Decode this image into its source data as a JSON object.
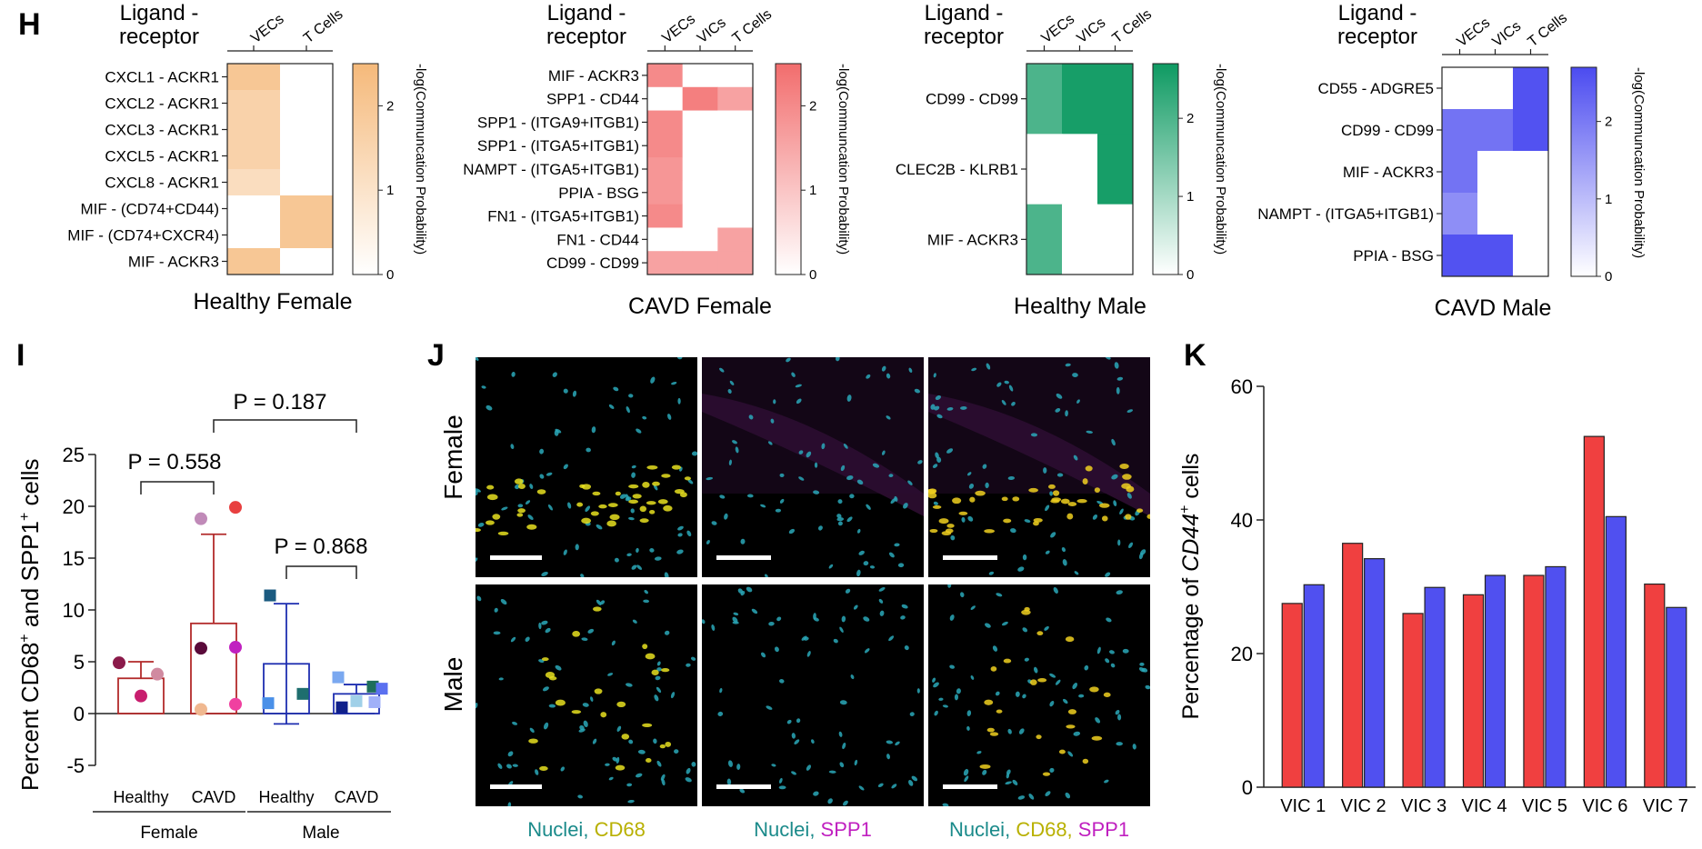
{
  "panel_letters": {
    "H": "H",
    "I": "I",
    "J": "J",
    "K": "K"
  },
  "heatmaps": {
    "header": "Ligand -\nreceptor",
    "colorbar_label": "-log(Communcation Probability)",
    "panels": [
      {
        "title": "Healthy Female",
        "columns": [
          "VECs",
          "T Cells"
        ],
        "rows": [
          "CXCL1 - ACKR1",
          "CXCL2 - ACKR1",
          "CXCL3 - ACKR1",
          "CXCL5 - ACKR1",
          "CXCL8 - ACKR1",
          "MIF - (CD74+CD44)",
          "MIF - (CD74+CXCR4)",
          "MIF - ACKR3"
        ],
        "values": [
          [
            2.0,
            0
          ],
          [
            1.6,
            0
          ],
          [
            1.6,
            0
          ],
          [
            1.6,
            0
          ],
          [
            1.2,
            0
          ],
          [
            0,
            2.0
          ],
          [
            0,
            2.0
          ],
          [
            2.0,
            0
          ]
        ],
        "color": "#F5B97A",
        "ticks": [
          "0",
          "1",
          "2"
        ],
        "max": 2.5
      },
      {
        "title": "CAVD Female",
        "columns": [
          "VECs",
          "VICs",
          "T Cells"
        ],
        "rows": [
          "MIF - ACKR3",
          "SPP1 - CD44",
          "SPP1 - (ITGA9+ITGB1)",
          "SPP1 - (ITGA5+ITGB1)",
          "NAMPT - (ITGA5+ITGB1)",
          "PPIA - BSG",
          "FN1 - (ITGA5+ITGB1)",
          "FN1 - CD44",
          "CD99 - CD99"
        ],
        "values": [
          [
            2.0,
            0,
            0
          ],
          [
            0,
            2.2,
            1.6
          ],
          [
            2.0,
            0,
            0
          ],
          [
            2.0,
            0,
            0
          ],
          [
            1.8,
            0,
            0
          ],
          [
            1.8,
            0,
            0
          ],
          [
            2.0,
            0,
            0
          ],
          [
            0,
            0,
            1.6
          ],
          [
            1.6,
            1.6,
            1.6
          ]
        ],
        "color": "#F26D6D",
        "ticks": [
          "0",
          "1",
          "2"
        ],
        "max": 2.5
      },
      {
        "title": "Healthy Male",
        "columns": [
          "VECs",
          "VICs",
          "T Cells"
        ],
        "rows": [
          "CD99 - CD99",
          "CLEC2B - KLRB1",
          "MIF - ACKR3"
        ],
        "values": [
          [
            2.0,
            2.6,
            2.6
          ],
          [
            0,
            0,
            2.6
          ],
          [
            2.0,
            0,
            0
          ]
        ],
        "color": "#0E9A62",
        "ticks": [
          "0",
          "1",
          "2"
        ],
        "max": 2.7
      },
      {
        "title": "CAVD Male",
        "columns": [
          "VECs",
          "VICs",
          "T Cells"
        ],
        "rows": [
          "CD55 - ADGRE5",
          "CD99 - CD99",
          "MIF - ACKR3",
          "NAMPT - (ITGA5+ITGB1)",
          "PPIA - BSG"
        ],
        "values": [
          [
            0,
            0,
            2.6
          ],
          [
            2.1,
            2.1,
            2.6
          ],
          [
            2.1,
            0,
            0
          ],
          [
            1.7,
            0,
            0
          ],
          [
            2.6,
            2.6,
            0
          ]
        ],
        "color": "#4B4BF0",
        "ticks": [
          "0",
          "1",
          "2"
        ],
        "max": 2.7
      }
    ]
  },
  "panel_I": {
    "ylabel_main": "Percent CD68",
    "ylabel_sup": "+",
    "ylabel_mid": " and SPP1",
    "ylabel_end": " cells",
    "yticks": [
      "-5",
      "0",
      "5",
      "10",
      "15",
      "20",
      "25"
    ],
    "groups": [
      {
        "label": "Healthy",
        "mean": 3.4,
        "sd": 1.6,
        "color": "#B22A2A",
        "points": [
          {
            "y": 4.9,
            "c": "#8B1A4A",
            "s": "circle"
          },
          {
            "y": 3.8,
            "c": "#D08AA0",
            "s": "circle"
          },
          {
            "y": 1.7,
            "c": "#C81E6E",
            "s": "circle"
          }
        ]
      },
      {
        "label": "CAVD",
        "mean": 8.7,
        "sd": 8.6,
        "color": "#B22A2A",
        "points": [
          {
            "y": 18.8,
            "c": "#C08AB8",
            "s": "circle"
          },
          {
            "y": 19.9,
            "c": "#E84040",
            "s": "circle"
          },
          {
            "y": 6.3,
            "c": "#5A0A3A",
            "s": "circle"
          },
          {
            "y": 6.4,
            "c": "#C020C0",
            "s": "circle"
          },
          {
            "y": 0.4,
            "c": "#F0B890",
            "s": "circle"
          },
          {
            "y": 0.9,
            "c": "#F040A0",
            "s": "circle"
          }
        ]
      },
      {
        "label": "Healthy",
        "mean": 4.8,
        "sd": 5.8,
        "color": "#1E2EB0",
        "points": [
          {
            "y": 11.4,
            "c": "#1A5A80",
            "s": "square"
          },
          {
            "y": 1.9,
            "c": "#1E6E6E",
            "s": "square"
          },
          {
            "y": 1.0,
            "c": "#4A90E8",
            "s": "square"
          }
        ]
      },
      {
        "label": "CAVD",
        "mean": 1.9,
        "sd": 0.9,
        "color": "#1E2EB0",
        "points": [
          {
            "y": 3.5,
            "c": "#7AA8F0",
            "s": "square"
          },
          {
            "y": 2.6,
            "c": "#1E6E5A",
            "s": "square"
          },
          {
            "y": 2.4,
            "c": "#5A70F0",
            "s": "square"
          },
          {
            "y": 1.2,
            "c": "#A0D0E8",
            "s": "square"
          },
          {
            "y": 1.1,
            "c": "#A0B0F8",
            "s": "square"
          },
          {
            "y": 0.6,
            "c": "#10208A",
            "s": "square"
          }
        ]
      }
    ],
    "sex_labels": [
      "Female",
      "Male"
    ],
    "comparisons": [
      {
        "label": "P = 0.558"
      },
      {
        "label": "P = 0.868"
      },
      {
        "label": "P = 0.187"
      }
    ]
  },
  "panel_J": {
    "row_labels": [
      "Female",
      "Male"
    ],
    "captions": [
      [
        {
          "t": "Nuclei",
          "c": "#1A8A8A"
        },
        {
          "t": ", ",
          "c": "#1A8A8A"
        },
        {
          "t": "CD68",
          "c": "#B8B000"
        }
      ],
      [
        {
          "t": "Nuclei",
          "c": "#1A8A8A"
        },
        {
          "t": ", ",
          "c": "#1A8A8A"
        },
        {
          "t": "SPP1",
          "c": "#C020C0"
        }
      ],
      [
        {
          "t": "Nuclei",
          "c": "#1A8A8A"
        },
        {
          "t": ", ",
          "c": "#1A8A8A"
        },
        {
          "t": "CD68, ",
          "c": "#B8B000"
        },
        {
          "t": "SPP1",
          "c": "#C020C0"
        }
      ]
    ]
  },
  "chart_data": {
    "type": "bar",
    "categories": [
      "VIC 1",
      "VIC 2",
      "VIC 3",
      "VIC 4",
      "VIC 5",
      "VIC 6",
      "VIC 7"
    ],
    "series": [
      {
        "values": [
          27.5,
          36.5,
          26.0,
          28.8,
          31.7,
          52.5,
          30.4
        ],
        "color": "#F04040"
      },
      {
        "values": [
          30.3,
          34.2,
          29.9,
          31.7,
          33.0,
          40.5,
          26.9
        ],
        "color": "#5050F0"
      }
    ],
    "ylabel_pre": "Percentage of ",
    "ylabel_gene": "CD44",
    "ylabel_sup": "+",
    "ylabel_post": " cells",
    "ylim": [
      0,
      60
    ],
    "yticks": [
      "0",
      "20",
      "40",
      "60"
    ]
  }
}
